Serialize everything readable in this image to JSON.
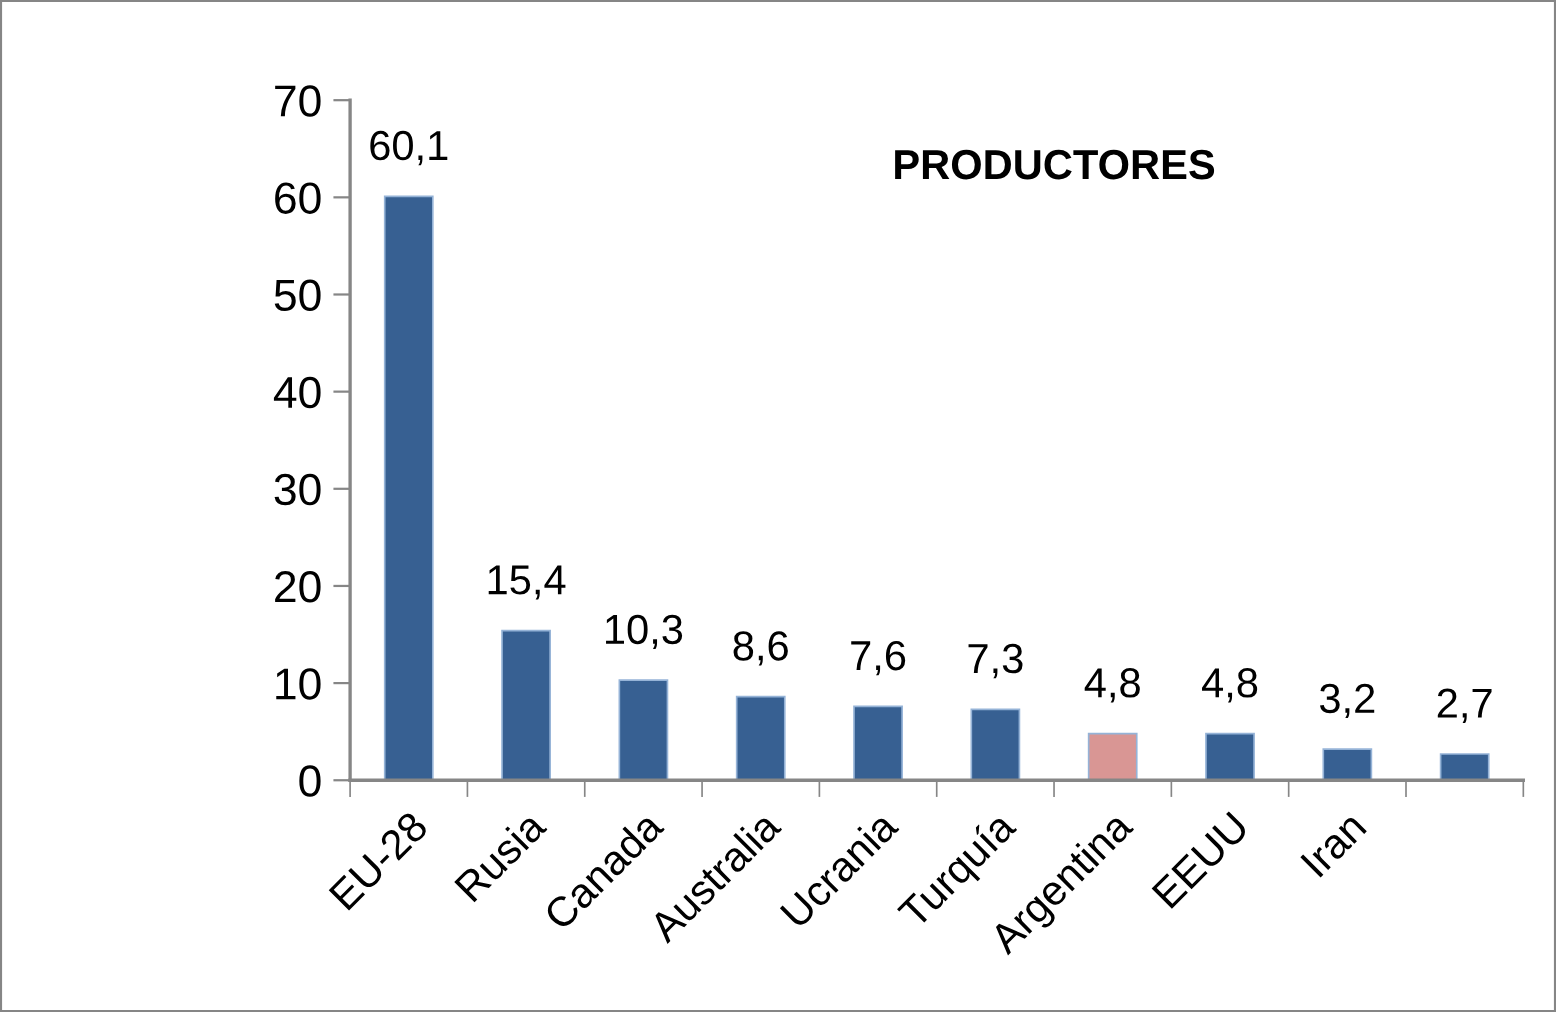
{
  "chart_data": {
    "type": "bar",
    "title": "PRODUCTORES",
    "categories": [
      "EU-28",
      "Rusia",
      "Canada",
      "Australia",
      "Ucrania",
      "Turquía",
      "Argentina",
      "EEUU",
      "Iran",
      null
    ],
    "values": [
      60.1,
      15.4,
      10.3,
      8.6,
      7.6,
      7.3,
      4.8,
      4.8,
      3.2,
      2.7
    ],
    "colors": [
      "#376092",
      "#376092",
      "#376092",
      "#376092",
      "#376092",
      "#376092",
      "#d99694",
      "#376092",
      "#376092",
      "#376092"
    ],
    "value_labels": [
      "60,1",
      "15,4",
      "10,3",
      "8,6",
      "7,6",
      "7,3",
      "4,8",
      "4,8",
      "3,2",
      "2,7"
    ],
    "ylim": [
      0,
      70
    ],
    "yticks": [
      0,
      10,
      20,
      30,
      40,
      50,
      60,
      70
    ],
    "grid": false,
    "legend": false
  }
}
